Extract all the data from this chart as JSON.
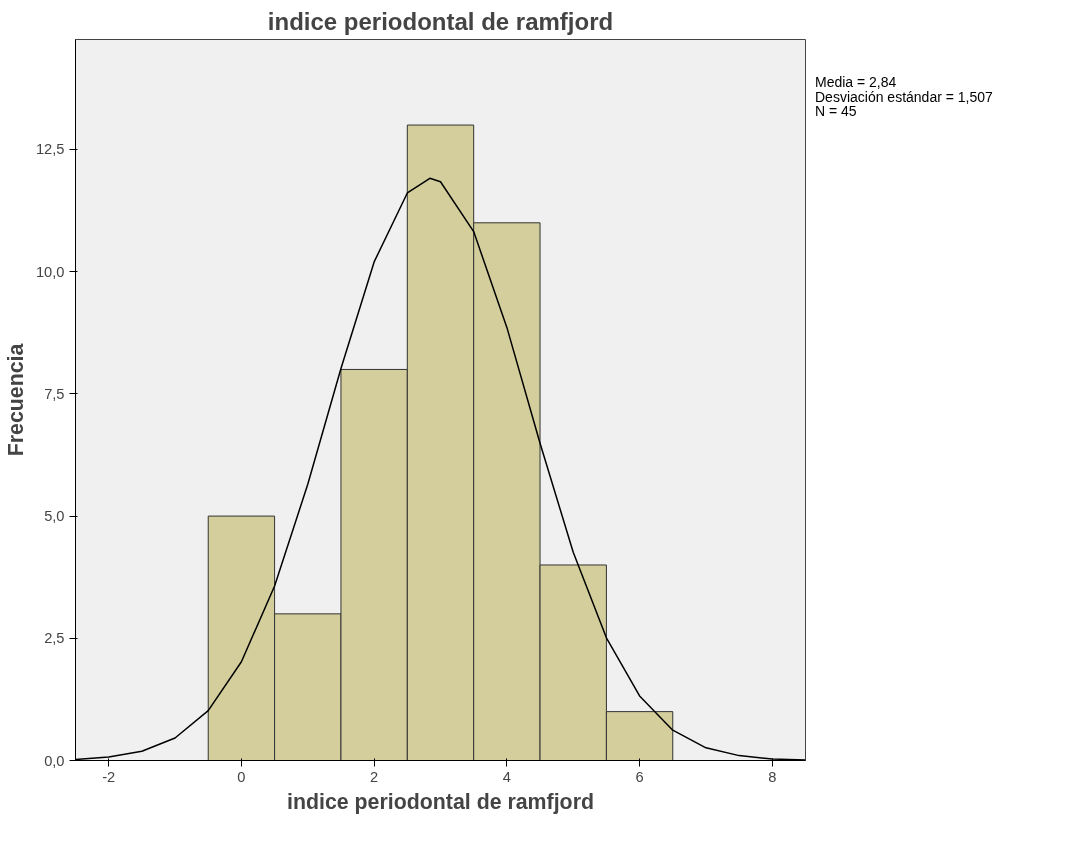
{
  "chart_data": {
    "type": "histogram",
    "title": "indice periodontal de ramfjord",
    "xlabel": "indice periodontal de ramfjord",
    "ylabel": "Frecuencia",
    "bins": [
      -0.5,
      0.5,
      1.5,
      2.5,
      3.5,
      4.5,
      5.5,
      6.5
    ],
    "values": [
      5,
      3,
      8,
      13,
      11,
      4,
      1
    ],
    "color": "#d3ce9b",
    "series": [
      {
        "type": "line",
        "color": "#000000",
        "x": [
          -2.5,
          -2,
          -1.5,
          -1,
          -0.5,
          0,
          0.5,
          1,
          1.5,
          2,
          2.5,
          2.84,
          3,
          3.5,
          4,
          4.5,
          5,
          5.5,
          6,
          6.5,
          7,
          7.5,
          8,
          8.5
        ],
        "values": [
          0.02,
          0.07,
          0.19,
          0.46,
          1.02,
          2.02,
          3.57,
          5.65,
          8.02,
          10.2,
          11.61,
          11.91,
          11.84,
          10.82,
          8.86,
          6.49,
          4.26,
          2.51,
          1.32,
          0.62,
          0.26,
          0.1,
          0.03,
          0.01
        ]
      }
    ],
    "xlim": [
      -2.5,
      8.5
    ],
    "xticks": [
      -2,
      0,
      2,
      4,
      6,
      8
    ],
    "ylim": [
      0,
      14.75
    ],
    "yticks": [
      {
        "value": 0,
        "label": "0,0"
      },
      {
        "value": 2.5,
        "label": "2,5"
      },
      {
        "value": 5,
        "label": "5,0"
      },
      {
        "value": 7.5,
        "label": "7,5"
      },
      {
        "value": 10,
        "label": "10,0"
      },
      {
        "value": 12.5,
        "label": "12,5"
      }
    ],
    "grid": false,
    "annotations": [
      "Media = 2,84",
      "Desviación estándar = 1,507",
      "N = 45"
    ]
  }
}
